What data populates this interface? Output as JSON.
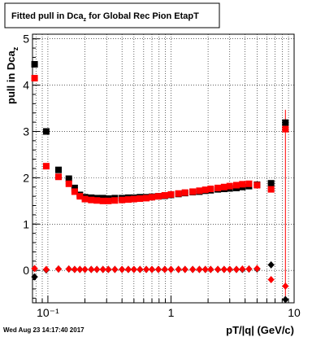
{
  "chart_data": {
    "type": "scatter",
    "title": "Fitted pull in Dca",
    "title_subscript": "z",
    "title_suffix": " for Global Rec Pion EtapT",
    "xlabel": "pT/|q| (GeV/c)",
    "ylabel": "pull in Dca",
    "ylabel_subscript": "z",
    "x_scale": "log",
    "xlim": [
      0.075,
      10
    ],
    "ylim": [
      -0.7,
      5.1
    ],
    "grid": true,
    "x_ticks": [
      {
        "value": 0.1,
        "label": "10⁻¹"
      },
      {
        "value": 1,
        "label": "1"
      },
      {
        "value": 10,
        "label": "10"
      }
    ],
    "y_ticks": [
      {
        "value": 0,
        "label": "0"
      },
      {
        "value": 1,
        "label": "1"
      },
      {
        "value": 2,
        "label": "2"
      },
      {
        "value": 3,
        "label": "3"
      },
      {
        "value": 4,
        "label": "4"
      },
      {
        "value": 5,
        "label": "5"
      }
    ],
    "footer": "Wed Aug 23 14:17:40 2017",
    "series": [
      {
        "marker": "square",
        "color": "#000000",
        "x": [
          0.078,
          0.097,
          0.122,
          0.148,
          0.165,
          0.182,
          0.2,
          0.225,
          0.25,
          0.28,
          0.31,
          0.35,
          0.4,
          0.45,
          0.5,
          0.56,
          0.63,
          0.7,
          0.79,
          0.89,
          1.0,
          1.15,
          1.3,
          1.5,
          1.7,
          1.9,
          2.1,
          2.4,
          2.7,
          3.0,
          3.4,
          3.8,
          4.3,
          5.0,
          6.5,
          8.5
        ],
        "y": [
          4.45,
          3.0,
          2.17,
          1.98,
          1.78,
          1.63,
          1.58,
          1.57,
          1.56,
          1.56,
          1.55,
          1.56,
          1.56,
          1.57,
          1.57,
          1.58,
          1.58,
          1.59,
          1.6,
          1.61,
          1.63,
          1.65,
          1.67,
          1.69,
          1.7,
          1.72,
          1.73,
          1.75,
          1.76,
          1.77,
          1.78,
          1.8,
          1.82,
          1.85,
          1.88,
          3.19
        ]
      },
      {
        "marker": "square",
        "color": "#ff0000",
        "x": [
          0.078,
          0.097,
          0.122,
          0.148,
          0.165,
          0.182,
          0.2,
          0.225,
          0.25,
          0.28,
          0.31,
          0.35,
          0.4,
          0.45,
          0.5,
          0.56,
          0.63,
          0.7,
          0.79,
          0.89,
          1.0,
          1.15,
          1.3,
          1.5,
          1.7,
          1.9,
          2.1,
          2.4,
          2.7,
          3.0,
          3.4,
          3.8,
          4.3,
          5.0,
          6.5,
          8.5
        ],
        "y": [
          4.15,
          2.25,
          2.02,
          1.87,
          1.7,
          1.6,
          1.54,
          1.52,
          1.51,
          1.5,
          1.5,
          1.51,
          1.52,
          1.53,
          1.54,
          1.55,
          1.56,
          1.58,
          1.6,
          1.62,
          1.64,
          1.66,
          1.68,
          1.7,
          1.72,
          1.74,
          1.76,
          1.78,
          1.8,
          1.82,
          1.84,
          1.86,
          1.87,
          1.84,
          1.75,
          3.05
        ]
      },
      {
        "marker": "diamond",
        "color": "#000000",
        "x": [
          0.078,
          0.097,
          0.122,
          0.148,
          0.165,
          0.182,
          0.2,
          0.225,
          0.25,
          0.28,
          0.31,
          0.35,
          0.4,
          0.45,
          0.5,
          0.56,
          0.63,
          0.7,
          0.79,
          0.89,
          1.0,
          1.15,
          1.3,
          1.5,
          1.7,
          1.9,
          2.1,
          2.4,
          2.7,
          3.0,
          3.4,
          3.8,
          4.3,
          5.0,
          6.5,
          8.5
        ],
        "y": [
          -0.14,
          0.01,
          0.03,
          0.03,
          0.02,
          0.02,
          0.02,
          0.02,
          0.02,
          0.02,
          0.02,
          0.02,
          0.02,
          0.02,
          0.02,
          0.02,
          0.02,
          0.02,
          0.02,
          0.02,
          0.02,
          0.02,
          0.02,
          0.02,
          0.02,
          0.02,
          0.02,
          0.02,
          0.02,
          0.02,
          0.02,
          0.02,
          0.03,
          0.03,
          0.12,
          -0.63
        ]
      },
      {
        "marker": "diamond",
        "color": "#ff0000",
        "x": [
          0.078,
          0.097,
          0.122,
          0.148,
          0.165,
          0.182,
          0.2,
          0.225,
          0.25,
          0.28,
          0.31,
          0.35,
          0.4,
          0.45,
          0.5,
          0.56,
          0.63,
          0.7,
          0.79,
          0.89,
          1.0,
          1.15,
          1.3,
          1.5,
          1.7,
          1.9,
          2.1,
          2.4,
          2.7,
          3.0,
          3.4,
          3.8,
          4.3,
          5.0,
          6.5,
          8.5
        ],
        "y": [
          0.04,
          0.02,
          0.03,
          0.03,
          0.02,
          0.02,
          0.02,
          0.02,
          0.02,
          0.02,
          0.02,
          0.02,
          0.02,
          0.02,
          0.02,
          0.02,
          0.02,
          0.02,
          0.02,
          0.02,
          0.02,
          0.02,
          0.02,
          0.02,
          0.02,
          0.02,
          0.02,
          0.02,
          0.02,
          0.02,
          0.02,
          0.03,
          0.03,
          0.04,
          -0.2,
          -0.34
        ]
      }
    ]
  }
}
